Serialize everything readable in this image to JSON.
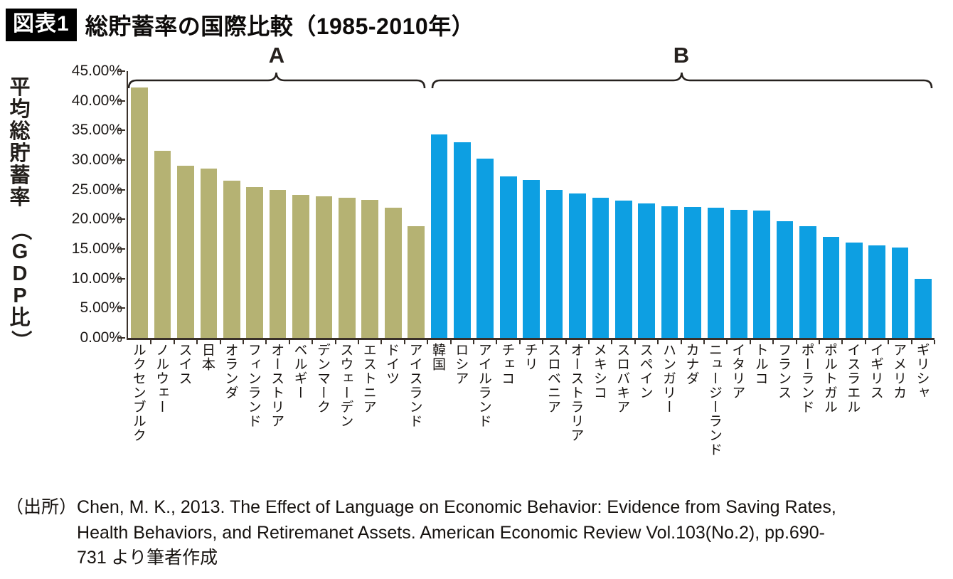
{
  "header": {
    "tag": "図表1",
    "title": "総貯蓄率の国際比較（1985-2010年）"
  },
  "chart_data": {
    "type": "bar",
    "title": "総貯蓄率の国際比較（1985-2010年）",
    "ylabel": "平均総貯蓄率（GDP比）",
    "xlabel": "",
    "ylim": [
      0,
      45
    ],
    "y_tick_step": 5,
    "grid": false,
    "legend": "none",
    "y_tick_labels": [
      "45.00%",
      "40.00%",
      "35.00%",
      "30.00%",
      "25.00%",
      "20.00%",
      "15.00%",
      "10.00%",
      "5.00%",
      "0.00%"
    ],
    "unit": "percent of GDP, average 1985-2010",
    "groups": [
      {
        "label": "A",
        "color": "#b5b273",
        "categories": [
          "ルクセンブルク",
          "ノルウェー",
          "スイス",
          "日本",
          "オランダ",
          "フィンランド",
          "オーストリア",
          "ベルギー",
          "デンマーク",
          "スウェーデン",
          "エストニア",
          "ドイツ",
          "アイスランド"
        ],
        "values": [
          42.2,
          31.6,
          29.1,
          28.6,
          26.5,
          25.5,
          25.0,
          24.1,
          23.9,
          23.7,
          23.3,
          22.0,
          18.9
        ]
      },
      {
        "label": "B",
        "color": "#0d9fe2",
        "categories": [
          "韓国",
          "ロシア",
          "アイルランド",
          "チェコ",
          "チリ",
          "スロベニア",
          "オーストラリア",
          "メキシコ",
          "スロバキア",
          "スペイン",
          "ハンガリー",
          "カナダ",
          "ニュージーランド",
          "イタリア",
          "トルコ",
          "フランス",
          "ポーランド",
          "ポルトガル",
          "イスラエル",
          "イギリス",
          "アメリカ",
          "ギリシャ"
        ],
        "values": [
          34.3,
          33.0,
          30.3,
          27.2,
          26.6,
          25.0,
          24.4,
          23.6,
          23.2,
          22.7,
          22.2,
          22.1,
          22.0,
          21.6,
          21.5,
          19.7,
          18.8,
          17.0,
          16.1,
          15.6,
          15.3,
          10.0
        ]
      }
    ]
  },
  "source": {
    "label": "（出所）",
    "lines": [
      "Chen, M. K., 2013. The Effect of Language on Economic Behavior: Evidence from Saving Rates,",
      "Health Behaviors, and Retiremanet Assets. American Economic Review Vol.103(No.2), pp.690-",
      "731 より筆者作成"
    ]
  }
}
